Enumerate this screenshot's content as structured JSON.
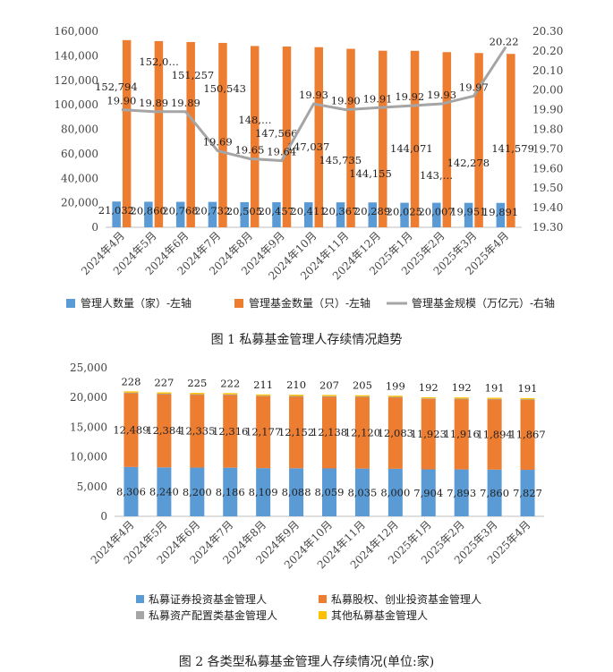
{
  "captions": {
    "fig1": "图 1 私募基金管理人存续情况趋势",
    "fig2": "图 2 各类型私募基金管理人存续情况(单位:家)"
  },
  "chart_data": [
    {
      "type": "bar",
      "categories": [
        "2024年4月",
        "2024年5月",
        "2024年6月",
        "2024年7月",
        "2024年8月",
        "2024年9月",
        "2024年10月",
        "2024年11月",
        "2024年12月",
        "2025年1月",
        "2025年2月",
        "2025年3月",
        "2025年4月"
      ],
      "series": [
        {
          "name": "管理人数量（家）-左轴",
          "type": "bar",
          "axis": "left",
          "color": "#5b9bd5",
          "values": [
            21032,
            20860,
            20768,
            20732,
            20505,
            20457,
            20411,
            20367,
            20289,
            20025,
            20007,
            19951,
            19891
          ],
          "labels": [
            "21,032",
            "20,860",
            "20,768",
            "20,732",
            "20,505",
            "20,457",
            "20,411",
            "20,367",
            "20,289",
            "20,025",
            "20,007",
            "19,951",
            "19,891"
          ]
        },
        {
          "name": "管理基金数量（只）-左轴",
          "type": "bar",
          "axis": "left",
          "color": "#ed7d31",
          "values": [
            152794,
            152000,
            151257,
            150543,
            148000,
            147566,
            147037,
            145735,
            144155,
            144071,
            143000,
            142278,
            141579
          ],
          "labels": [
            "152,794",
            "152,0…",
            "151,257",
            "150,543",
            "148,…",
            "147,566",
            "147,037",
            "145,735",
            "144,155",
            "144,071",
            "143,…",
            "142,278",
            "141,579"
          ]
        },
        {
          "name": "管理基金规模（万亿元）-右轴",
          "type": "line",
          "axis": "right",
          "color": "#a5a5a5",
          "values": [
            19.9,
            19.89,
            19.89,
            19.69,
            19.65,
            19.64,
            19.93,
            19.9,
            19.91,
            19.92,
            19.93,
            19.97,
            20.22
          ],
          "labels": [
            "19.90",
            "19.89",
            "19.89",
            "19.69",
            "19.65",
            "19.64",
            "19.93",
            "19.90",
            "19.91",
            "19.92",
            "19.93",
            "19.97",
            "20.22"
          ]
        }
      ],
      "ylim_left": [
        0,
        160000
      ],
      "yticks_left": [
        "0",
        "20,000",
        "40,000",
        "60,000",
        "80,000",
        "100,000",
        "120,000",
        "140,000",
        "160,000"
      ],
      "ylim_right": [
        19.3,
        20.3
      ],
      "yticks_right": [
        "19.30",
        "19.40",
        "19.50",
        "19.60",
        "19.70",
        "19.80",
        "19.90",
        "20.00",
        "20.10",
        "20.20",
        "20.30"
      ],
      "grid": false,
      "legend_position": "bottom"
    },
    {
      "type": "bar",
      "stacked": true,
      "categories": [
        "2024年4月",
        "2024年5月",
        "2024年6月",
        "2024年7月",
        "2024年8月",
        "2024年9月",
        "2024年10月",
        "2024年11月",
        "2024年12月",
        "2025年1月",
        "2025年2月",
        "2025年3月",
        "2025年4月"
      ],
      "series": [
        {
          "name": "私募证券投资基金管理人",
          "color": "#5b9bd5",
          "values": [
            8306,
            8240,
            8200,
            8186,
            8109,
            8088,
            8059,
            8035,
            8000,
            7904,
            7893,
            7860,
            7827
          ],
          "labels": [
            "8,306",
            "8,240",
            "8,200",
            "8,186",
            "8,109",
            "8,088",
            "8,059",
            "8,035",
            "8,000",
            "7,904",
            "7,893",
            "7,860",
            "7,827"
          ]
        },
        {
          "name": "私募股权、创业投资基金管理人",
          "color": "#ed7d31",
          "values": [
            12489,
            12384,
            12335,
            12316,
            12177,
            12152,
            12138,
            12120,
            12083,
            11923,
            11916,
            11894,
            11867
          ],
          "labels": [
            "12,489",
            "12,384",
            "12,335",
            "12,316",
            "12,177",
            "12,152",
            "12,138",
            "12,120",
            "12,083",
            "11,923",
            "11,916",
            "11,894",
            "11,867"
          ]
        },
        {
          "name": "私募资产配置类基金管理人",
          "color": "#a5a5a5",
          "values": [
            9,
            9,
            9,
            9,
            9,
            9,
            9,
            9,
            9,
            9,
            9,
            9,
            9
          ]
        },
        {
          "name": "其他私募基金管理人",
          "color": "#ffc000",
          "values": [
            228,
            227,
            225,
            222,
            211,
            210,
            207,
            205,
            199,
            192,
            192,
            191,
            191
          ],
          "labels": [
            "228",
            "227",
            "225",
            "222",
            "211",
            "210",
            "207",
            "205",
            "199",
            "192",
            "192",
            "191",
            "191"
          ]
        }
      ],
      "ylim": [
        0,
        25000
      ],
      "yticks": [
        "0",
        "5,000",
        "10,000",
        "15,000",
        "20,000",
        "25,000"
      ],
      "grid": false,
      "legend_position": "bottom"
    }
  ]
}
